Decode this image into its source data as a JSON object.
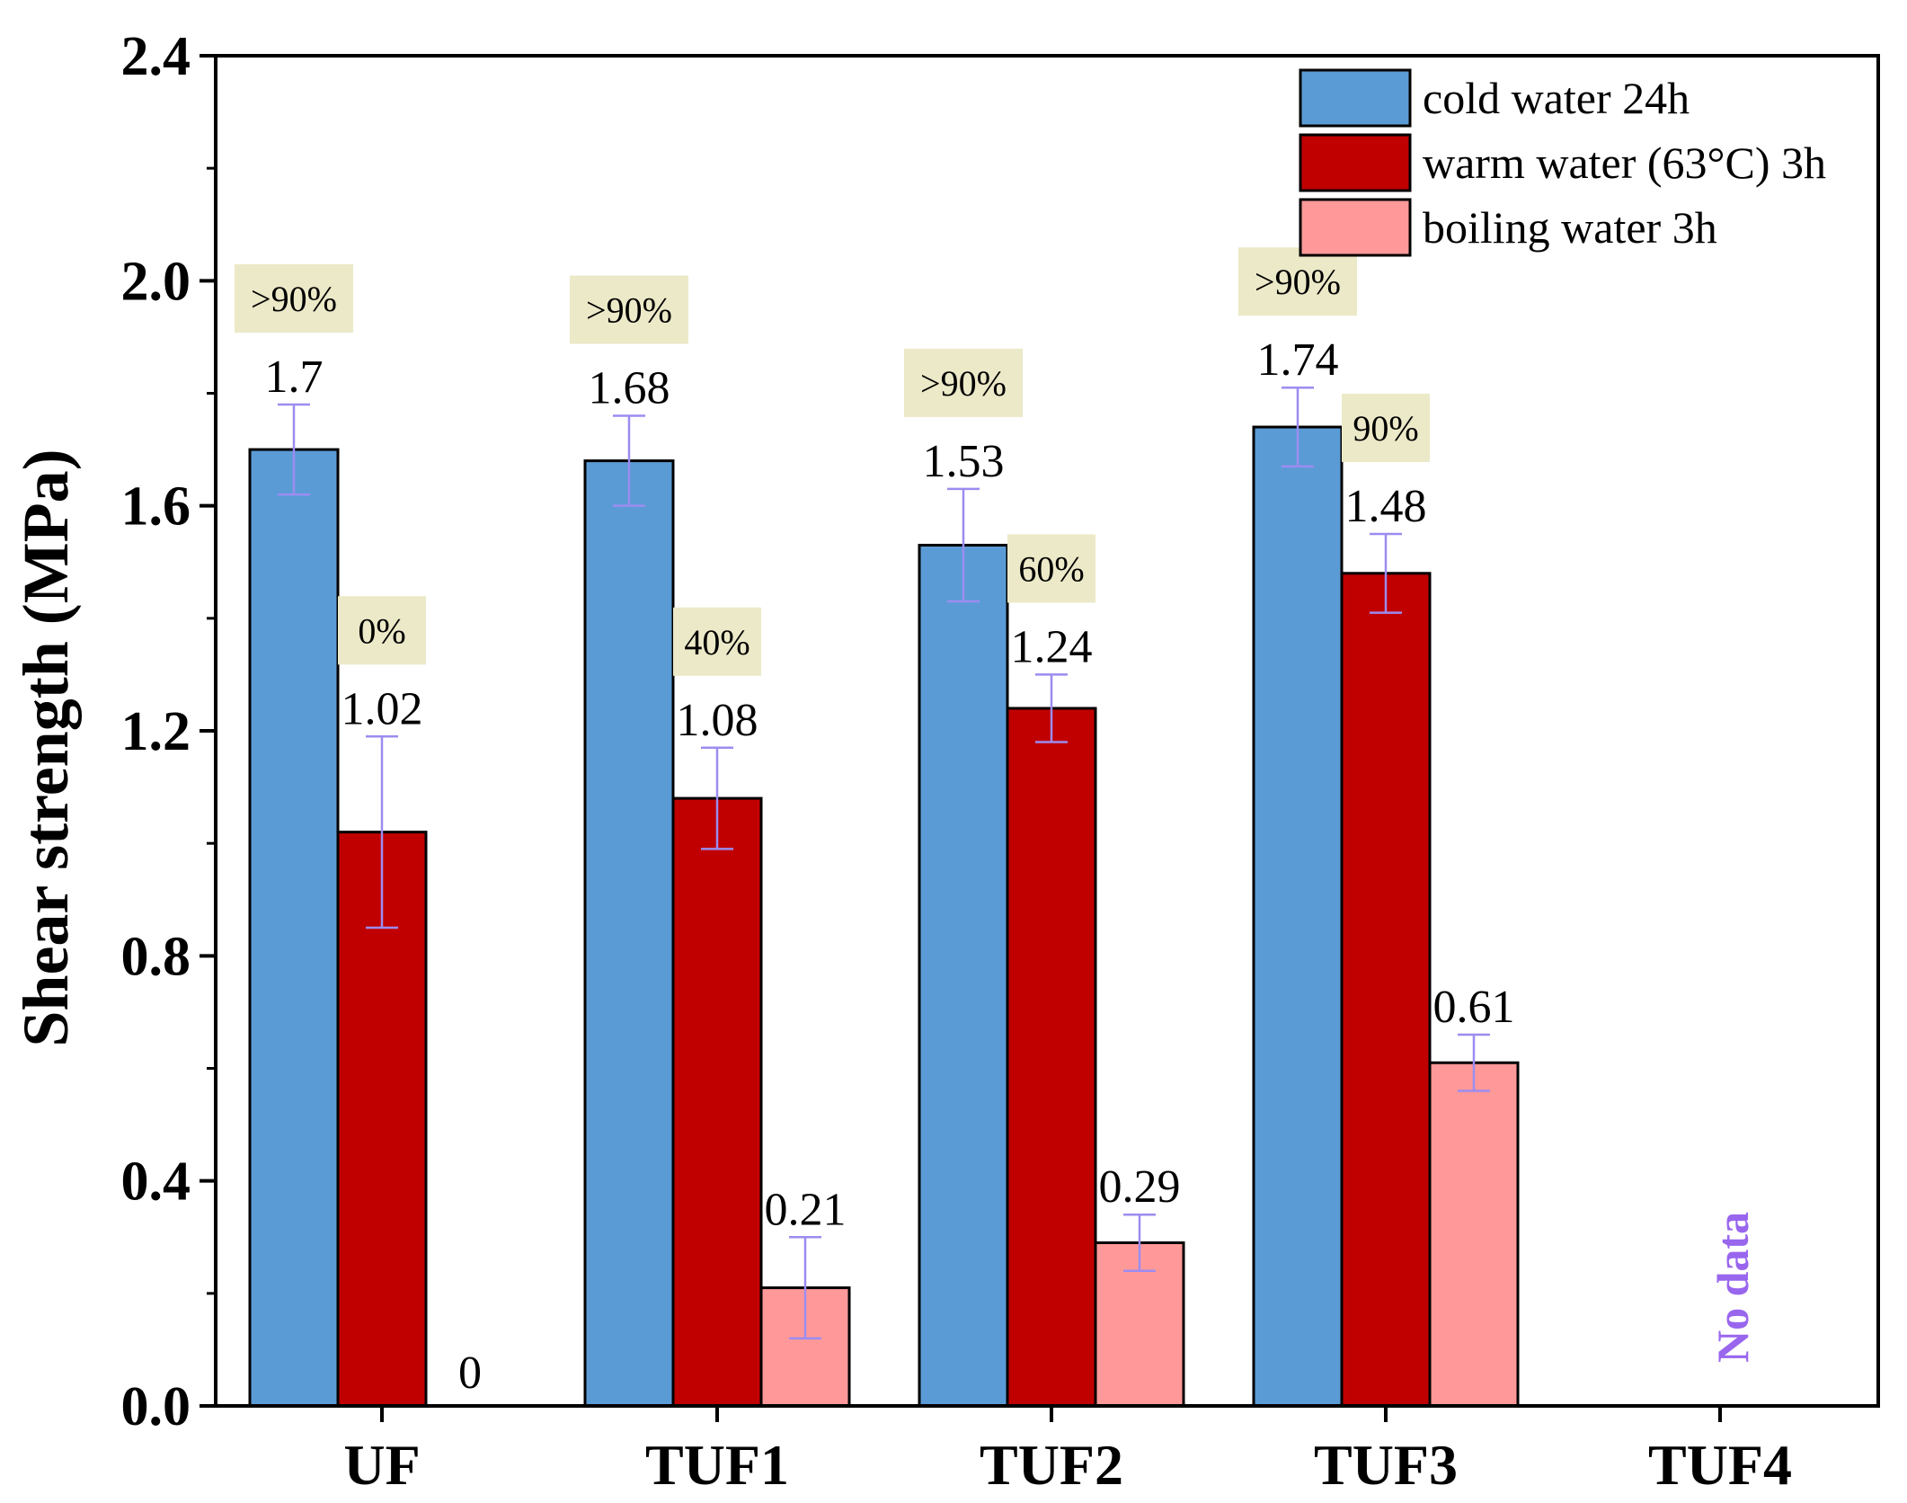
{
  "chart_data": {
    "type": "bar",
    "title": "",
    "xlabel": "",
    "ylabel": "Shear strength (MPa)",
    "ylim": [
      0,
      2.4
    ],
    "yticks": [
      "0.0",
      "0.4",
      "0.8",
      "1.2",
      "1.6",
      "2.0",
      "2.4"
    ],
    "categories": [
      "UF",
      "TUF1",
      "TUF2",
      "TUF3",
      "TUF4"
    ],
    "series": [
      {
        "name": "cold water 24h",
        "color": "#5b9bd5",
        "values": [
          1.7,
          1.68,
          1.53,
          1.74,
          null
        ],
        "labels": [
          "1.7",
          "1.68",
          "1.53",
          "1.74",
          ""
        ],
        "errors": [
          0.08,
          0.08,
          0.1,
          0.07,
          null
        ]
      },
      {
        "name": "warm water (63°C) 3h",
        "color": "#c00000",
        "values": [
          1.02,
          1.08,
          1.24,
          1.48,
          null
        ],
        "labels": [
          "1.02",
          "1.08",
          "1.24",
          "1.48",
          ""
        ],
        "errors": [
          0.17,
          0.09,
          0.06,
          0.07,
          null
        ]
      },
      {
        "name": "boiling water 3h",
        "color": "#ff9999",
        "values": [
          0,
          0.21,
          0.29,
          0.61,
          null
        ],
        "labels": [
          "0",
          "0.21",
          "0.29",
          "0.61",
          ""
        ],
        "errors": [
          null,
          0.09,
          0.05,
          0.05,
          null
        ]
      }
    ],
    "annotations": [
      {
        "category": 0,
        "series": 0,
        "text": ">90%"
      },
      {
        "category": 0,
        "series": 1,
        "text": "0%"
      },
      {
        "category": 1,
        "series": 0,
        "text": ">90%"
      },
      {
        "category": 1,
        "series": 1,
        "text": "40%"
      },
      {
        "category": 2,
        "series": 0,
        "text": ">90%"
      },
      {
        "category": 2,
        "series": 1,
        "text": "60%"
      },
      {
        "category": 3,
        "series": 0,
        "text": ">90%"
      },
      {
        "category": 3,
        "series": 1,
        "text": "90%"
      }
    ],
    "no_data_label": "No data",
    "no_data_category": 4,
    "legend": "top-right"
  }
}
